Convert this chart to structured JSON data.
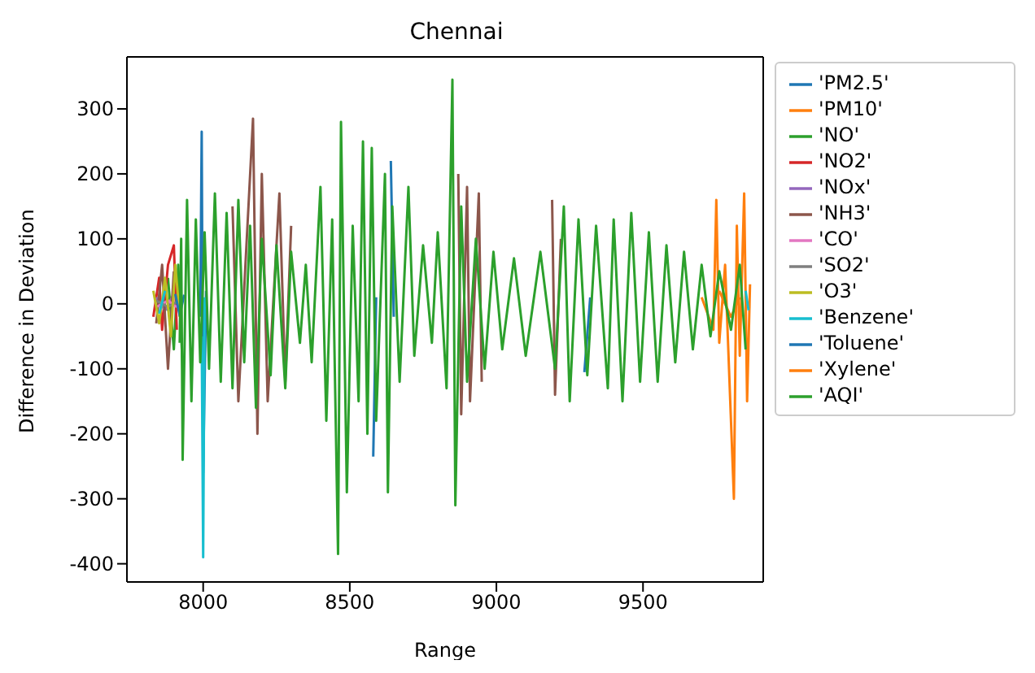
{
  "chart_data": {
    "type": "line",
    "title": "Chennai",
    "xlabel": "Range",
    "ylabel": "Difference in Deviation",
    "xlim": [
      7740,
      9910
    ],
    "xticks": [
      8000,
      8500,
      9000,
      9500
    ],
    "ylim": [
      -428,
      380
    ],
    "yticks": [
      -400,
      -300,
      -200,
      -100,
      0,
      100,
      200,
      300
    ],
    "grid": false,
    "legend": "right",
    "marker": "none",
    "line_style": "solid",
    "series": [
      {
        "name": "'PM2.5'",
        "color": "#1f77b4",
        "x": [
          7850,
          7880,
          7900,
          7990,
          7995,
          8000,
          8010,
          8020,
          8580,
          8590,
          8600,
          8640,
          8650,
          8660,
          9300,
          9320
        ],
        "values": [
          10,
          -10,
          null,
          -20,
          265,
          -260,
          20,
          null,
          -235,
          10,
          null,
          220,
          -20,
          null,
          -105,
          10
        ]
      },
      {
        "name": "'PM10'",
        "color": "#ff7f0e",
        "x": [
          9700,
          9740,
          9750,
          9760,
          9780,
          9810,
          9820,
          9830,
          9845,
          9855,
          9865
        ],
        "values": [
          10,
          -40,
          160,
          -60,
          60,
          -300,
          120,
          -80,
          170,
          -150,
          30
        ]
      },
      {
        "name": "'NO'",
        "color": "#2ca02c",
        "x": [
          7880,
          7900,
          7915,
          7930
        ],
        "values": [
          40,
          -70,
          60,
          -100
        ]
      },
      {
        "name": "'NO2'",
        "color": "#d62728",
        "x": [
          7830,
          7850,
          7860,
          7880,
          7900,
          7910
        ],
        "values": [
          -20,
          40,
          -40,
          60,
          90,
          -40
        ]
      },
      {
        "name": "'NOx'",
        "color": "#9467bd",
        "x": [
          7840,
          7870,
          7900
        ],
        "values": [
          10,
          -10,
          15
        ]
      },
      {
        "name": "'NH3'",
        "color": "#8c564b",
        "x": [
          7840,
          7860,
          7880,
          7900,
          7950,
          8100,
          8120,
          8170,
          8185,
          8200,
          8220,
          8260,
          8280,
          8300,
          8350,
          8870,
          8880,
          8900,
          8910,
          8940,
          8950,
          9000,
          9190,
          9200,
          9220
        ],
        "values": [
          -30,
          60,
          -100,
          50,
          null,
          150,
          -150,
          285,
          -200,
          200,
          -150,
          170,
          -120,
          120,
          null,
          200,
          -170,
          180,
          -150,
          170,
          -120,
          null,
          160,
          -140,
          100
        ]
      },
      {
        "name": "'CO'",
        "color": "#e377c2",
        "x": [
          7840,
          7880,
          7910
        ],
        "values": [
          -5,
          5,
          -5
        ]
      },
      {
        "name": "'SO2'",
        "color": "#7f7f7f",
        "x": [
          7840,
          7880,
          7910
        ],
        "values": [
          5,
          -5,
          3
        ]
      },
      {
        "name": "'O3'",
        "color": "#bcbd22",
        "x": [
          7830,
          7850,
          7870,
          7890,
          7905,
          7920
        ],
        "values": [
          20,
          -30,
          40,
          -50,
          60,
          -20
        ]
      },
      {
        "name": "'Benzene'",
        "color": "#17becf",
        "x": [
          7850,
          7870,
          7900,
          7995,
          8000,
          8005,
          8010,
          9850,
          9860
        ],
        "values": [
          -15,
          20,
          null,
          -50,
          -390,
          10,
          null,
          20,
          -10
        ]
      },
      {
        "name": "'Toluene'",
        "color": "#1f77b4",
        "x": [
          7905,
          7920,
          7935
        ],
        "values": [
          15,
          -18,
          14
        ]
      },
      {
        "name": "'Xylene'",
        "color": "#ff7f0e",
        "x": [
          9760,
          9800,
          9830
        ],
        "values": [
          20,
          -20,
          10
        ]
      },
      {
        "name": "'AQI'",
        "color": "#2ca02c",
        "x": [
          7920,
          7925,
          7930,
          7945,
          7960,
          7975,
          7990,
          8005,
          8020,
          8040,
          8060,
          8080,
          8100,
          8120,
          8140,
          8160,
          8180,
          8200,
          8230,
          8250,
          8280,
          8300,
          8330,
          8350,
          8370,
          8400,
          8420,
          8440,
          8460,
          8470,
          8490,
          8510,
          8530,
          8545,
          8560,
          8575,
          8590,
          8620,
          8630,
          8645,
          8670,
          8700,
          8720,
          8750,
          8780,
          8800,
          8830,
          8850,
          8860,
          8880,
          8900,
          8930,
          8960,
          8990,
          9020,
          9060,
          9100,
          9150,
          9200,
          9230,
          9250,
          9280,
          9310,
          9340,
          9380,
          9400,
          9430,
          9460,
          9490,
          9520,
          9550,
          9580,
          9610,
          9640,
          9670,
          9700,
          9730,
          9760,
          9800,
          9830,
          9850
        ],
        "values": [
          -60,
          100,
          -240,
          160,
          -150,
          130,
          -90,
          110,
          -100,
          170,
          -120,
          140,
          -130,
          160,
          -90,
          120,
          -160,
          100,
          -110,
          90,
          -130,
          80,
          -60,
          60,
          -90,
          180,
          -180,
          130,
          -385,
          280,
          -290,
          120,
          -150,
          250,
          -200,
          240,
          -180,
          200,
          -290,
          150,
          -120,
          180,
          -80,
          90,
          -60,
          110,
          -130,
          345,
          -310,
          150,
          -120,
          100,
          -100,
          80,
          -70,
          70,
          -80,
          80,
          -100,
          150,
          -150,
          130,
          -110,
          120,
          -130,
          130,
          -150,
          140,
          -120,
          110,
          -120,
          90,
          -90,
          80,
          -70,
          60,
          -50,
          50,
          -40,
          60,
          -70
        ]
      }
    ]
  }
}
